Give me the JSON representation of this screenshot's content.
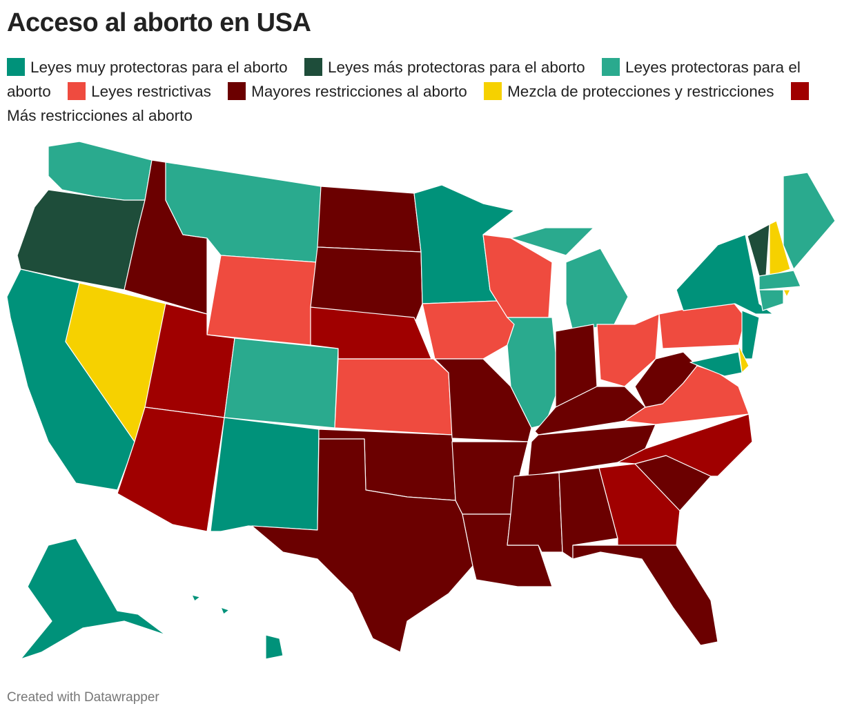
{
  "title": "Acceso al aborto en USA",
  "legend": {
    "items": [
      {
        "label": "Leyes muy protectoras para el aborto",
        "color": "#00927a"
      },
      {
        "label": "Leyes más protectoras para el aborto",
        "color": "#1e4d3a"
      },
      {
        "label": "Leyes protectoras para el aborto",
        "color": "#2aaa8e"
      },
      {
        "label": "Leyes restrictivas",
        "color": "#ef4b3f"
      },
      {
        "label": "Mayores restricciones al aborto",
        "color": "#6b0000"
      },
      {
        "label": "Mezcla de protecciones y restricciones",
        "color": "#f6d100"
      },
      {
        "label": "Más restricciones al aborto",
        "color": "#a00000"
      }
    ]
  },
  "footer": "Created with Datawrapper"
}
